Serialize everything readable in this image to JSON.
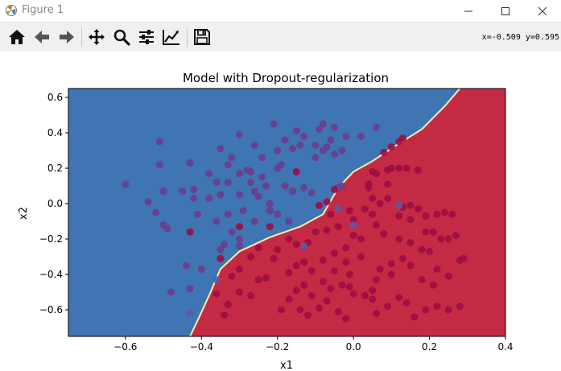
{
  "window": {
    "title": "Figure 1",
    "app_icon": "matplotlib-icon"
  },
  "window_controls": [
    "minimize-icon",
    "maximize-icon",
    "close-icon"
  ],
  "toolbar": {
    "tools": [
      "home-icon",
      "back-arrow-icon",
      "forward-arrow-icon",
      "pan-icon",
      "zoom-icon",
      "configure-subplots-icon",
      "edit-axis-icon",
      "save-icon"
    ],
    "coords": "x=-0.509 y=0.595"
  },
  "colors": {
    "blue_region": "#3e75b2",
    "red_region": "#c52a45",
    "boundary": "#f7efab",
    "pt_purple": "#6a3d8c",
    "pt_dark": "#9c0c42",
    "pt_blue": "#5c58a8"
  },
  "chart_data": {
    "type": "scatter",
    "title": "Model with Dropout-regularization",
    "xlabel": "x1",
    "ylabel": "x2",
    "xlim": [
      -0.75,
      0.4
    ],
    "ylim": [
      -0.75,
      0.65
    ],
    "xticks": [
      "−0.6",
      "−0.4",
      "−0.2",
      "0.0",
      "0.2",
      "0.4"
    ],
    "yticks": [
      "0.6",
      "0.4",
      "0.2",
      "0.0",
      "−0.2",
      "−0.4",
      "−0.6"
    ],
    "grid": false,
    "decision_boundary": [
      [
        -0.43,
        -0.75
      ],
      [
        -0.41,
        -0.66
      ],
      [
        -0.38,
        -0.52
      ],
      [
        -0.35,
        -0.37
      ],
      [
        -0.3,
        -0.27
      ],
      [
        -0.22,
        -0.19
      ],
      [
        -0.14,
        -0.13
      ],
      [
        -0.08,
        -0.06
      ],
      [
        -0.04,
        0.09
      ],
      [
        0.0,
        0.18
      ],
      [
        0.05,
        0.24
      ],
      [
        0.12,
        0.34
      ],
      [
        0.18,
        0.42
      ],
      [
        0.24,
        0.55
      ],
      [
        0.28,
        0.65
      ]
    ],
    "series": [
      {
        "color": "purple",
        "points": [
          [
            -0.6,
            0.11
          ],
          [
            -0.54,
            0.01
          ],
          [
            -0.52,
            -0.05
          ],
          [
            -0.5,
            0.07
          ],
          [
            -0.49,
            -0.14
          ],
          [
            -0.51,
            0.35
          ],
          [
            -0.51,
            0.22
          ],
          [
            -0.5,
            -0.12
          ],
          [
            -0.48,
            -0.5
          ],
          [
            -0.45,
            0.07
          ],
          [
            -0.42,
            0.08
          ],
          [
            -0.43,
            0.23
          ],
          [
            -0.42,
            0.03
          ],
          [
            -0.41,
            -0.06
          ],
          [
            -0.38,
            0.17
          ],
          [
            -0.36,
            0.12
          ],
          [
            -0.33,
            0.12
          ],
          [
            -0.35,
            0.31
          ],
          [
            -0.35,
            0.05
          ],
          [
            -0.3,
            0.39
          ],
          [
            -0.26,
            0.33
          ],
          [
            -0.33,
            0.22
          ],
          [
            -0.3,
            0.17
          ],
          [
            -0.28,
            0.19
          ],
          [
            -0.33,
            -0.06
          ],
          [
            -0.32,
            -0.16
          ],
          [
            -0.3,
            -0.2
          ],
          [
            -0.3,
            -0.24
          ],
          [
            -0.29,
            -0.04
          ],
          [
            -0.26,
            -0.1
          ],
          [
            -0.21,
            0.45
          ],
          [
            -0.18,
            0.36
          ],
          [
            -0.19,
            0.22
          ],
          [
            -0.16,
            0.31
          ],
          [
            -0.14,
            0.33
          ],
          [
            -0.15,
            0.41
          ],
          [
            -0.13,
            0.38
          ],
          [
            -0.1,
            0.26
          ],
          [
            -0.1,
            0.33
          ],
          [
            -0.08,
            0.3
          ],
          [
            -0.08,
            0.45
          ],
          [
            -0.05,
            0.43
          ],
          [
            -0.06,
            0.36
          ],
          [
            -0.09,
            0.42
          ],
          [
            -0.07,
            0.32
          ],
          [
            -0.05,
            0.28
          ],
          [
            -0.02,
            0.38
          ],
          [
            -0.03,
            0.3
          ],
          [
            0.02,
            0.38
          ],
          [
            0.06,
            0.43
          ],
          [
            -0.03,
            0.1
          ],
          [
            -0.04,
            0.09
          ],
          [
            -0.26,
            0.07
          ],
          [
            -0.22,
            -0.04
          ],
          [
            -0.2,
            -0.06
          ],
          [
            -0.17,
            -0.1
          ],
          [
            -0.23,
            0.1
          ],
          [
            -0.25,
            0.04
          ],
          [
            -0.18,
            0.1
          ],
          [
            -0.16,
            0.07
          ],
          [
            -0.13,
            0.09
          ],
          [
            -0.11,
            0.06
          ],
          [
            -0.34,
            -0.23
          ],
          [
            -0.35,
            -0.26
          ],
          [
            -0.36,
            -0.1
          ],
          [
            -0.24,
            0.15
          ],
          [
            -0.27,
            0.12
          ],
          [
            -0.32,
            0.26
          ],
          [
            -0.3,
            0.05
          ],
          [
            -0.38,
            0.03
          ],
          [
            -0.43,
            -0.48
          ],
          [
            -0.44,
            -0.35
          ],
          [
            -0.4,
            -0.37
          ],
          [
            -0.2,
            0.2
          ],
          [
            -0.27,
            0.18
          ],
          [
            -0.24,
            0.26
          ],
          [
            -0.2,
            0.3
          ],
          [
            -0.22,
            0.0
          ]
        ]
      },
      {
        "color": "crimson",
        "points": [
          [
            -0.43,
            -0.16
          ],
          [
            -0.35,
            -0.31
          ],
          [
            -0.3,
            -0.13
          ],
          [
            -0.22,
            -0.13
          ],
          [
            -0.15,
            0.18
          ],
          [
            -0.07,
            0.01
          ],
          [
            -0.05,
            0.08
          ],
          [
            0.08,
            0.29
          ],
          [
            0.1,
            0.32
          ],
          [
            0.12,
            0.35
          ],
          [
            0.13,
            0.37
          ],
          [
            0.05,
            0.18
          ],
          [
            0.06,
            0.17
          ],
          [
            0.09,
            0.19
          ],
          [
            0.1,
            0.2
          ],
          [
            0.12,
            0.2
          ],
          [
            0.14,
            0.2
          ],
          [
            0.17,
            0.19
          ],
          [
            0.04,
            0.11
          ],
          [
            0.09,
            0.11
          ],
          [
            0.04,
            0.09
          ],
          [
            0.05,
            0.03
          ],
          [
            0.07,
            0.0
          ],
          [
            0.09,
            0.03
          ],
          [
            0.03,
            -0.03
          ],
          [
            0.05,
            -0.06
          ],
          [
            0.06,
            -0.12
          ],
          [
            0.13,
            -0.02
          ],
          [
            0.15,
            -0.01
          ],
          [
            0.17,
            -0.03
          ],
          [
            0.19,
            -0.07
          ],
          [
            0.22,
            -0.06
          ],
          [
            0.24,
            -0.05
          ],
          [
            0.26,
            -0.06
          ],
          [
            0.12,
            -0.07
          ],
          [
            0.15,
            -0.09
          ],
          [
            0.19,
            -0.16
          ],
          [
            0.21,
            -0.16
          ],
          [
            0.23,
            -0.2
          ],
          [
            0.25,
            -0.2
          ],
          [
            0.27,
            -0.18
          ],
          [
            0.12,
            -0.2
          ],
          [
            0.15,
            -0.22
          ],
          [
            0.18,
            -0.26
          ],
          [
            0.2,
            -0.27
          ],
          [
            0.29,
            -0.31
          ],
          [
            0.28,
            -0.32
          ],
          [
            0.1,
            -0.34
          ],
          [
            0.13,
            -0.31
          ],
          [
            0.22,
            -0.37
          ],
          [
            0.25,
            -0.41
          ],
          [
            0.21,
            -0.46
          ],
          [
            0.15,
            -0.35
          ],
          [
            0.18,
            -0.43
          ],
          [
            0.1,
            -0.4
          ],
          [
            0.07,
            -0.37
          ],
          [
            0.06,
            -0.43
          ],
          [
            0.05,
            -0.49
          ],
          [
            0.03,
            -0.52
          ],
          [
            -0.01,
            -0.47
          ],
          [
            -0.03,
            -0.46
          ],
          [
            0.0,
            -0.51
          ],
          [
            -0.06,
            -0.48
          ],
          [
            -0.07,
            -0.55
          ],
          [
            -0.09,
            -0.59
          ],
          [
            -0.11,
            -0.52
          ],
          [
            -0.13,
            -0.46
          ],
          [
            -0.15,
            -0.49
          ],
          [
            -0.17,
            -0.54
          ],
          [
            -0.19,
            -0.6
          ],
          [
            -0.14,
            -0.6
          ],
          [
            -0.12,
            -0.63
          ],
          [
            -0.04,
            -0.61
          ],
          [
            -0.02,
            -0.65
          ],
          [
            0.05,
            -0.54
          ],
          [
            0.06,
            -0.62
          ],
          [
            0.09,
            -0.58
          ],
          [
            0.12,
            -0.53
          ],
          [
            0.14,
            -0.56
          ],
          [
            0.16,
            -0.64
          ],
          [
            0.19,
            -0.6
          ],
          [
            0.22,
            -0.58
          ],
          [
            0.25,
            -0.6
          ],
          [
            0.28,
            -0.58
          ],
          [
            -0.23,
            -0.42
          ],
          [
            -0.25,
            -0.43
          ],
          [
            -0.27,
            -0.52
          ],
          [
            -0.3,
            -0.5
          ],
          [
            -0.32,
            -0.41
          ],
          [
            -0.3,
            -0.37
          ],
          [
            -0.27,
            -0.3
          ],
          [
            -0.25,
            -0.25
          ],
          [
            -0.2,
            -0.26
          ],
          [
            -0.17,
            -0.2
          ],
          [
            -0.15,
            -0.23
          ],
          [
            -0.13,
            -0.33
          ],
          [
            -0.11,
            -0.38
          ],
          [
            -0.08,
            -0.32
          ],
          [
            -0.05,
            -0.28
          ],
          [
            -0.02,
            -0.25
          ],
          [
            0.0,
            -0.18
          ],
          [
            0.02,
            -0.2
          ],
          [
            -0.04,
            -0.13
          ],
          [
            -0.07,
            -0.15
          ],
          [
            -0.1,
            -0.16
          ],
          [
            -0.12,
            -0.22
          ],
          [
            -0.15,
            -0.35
          ],
          [
            -0.17,
            -0.39
          ],
          [
            -0.21,
            -0.31
          ],
          [
            -0.08,
            -0.44
          ],
          [
            -0.05,
            -0.38
          ],
          [
            -0.01,
            -0.4
          ],
          [
            -0.02,
            -0.33
          ],
          [
            0.02,
            -0.3
          ],
          [
            -0.33,
            -0.57
          ],
          [
            -0.36,
            -0.51
          ],
          [
            -0.34,
            -0.63
          ],
          [
            -0.06,
            -0.06
          ],
          [
            -0.09,
            -0.01
          ],
          [
            0.0,
            -0.09
          ],
          [
            -0.01,
            -0.04
          ],
          [
            0.08,
            -0.17
          ]
        ]
      },
      {
        "color": "blue",
        "points": [
          [
            0.12,
            -0.01
          ],
          [
            0.0,
            -0.12
          ],
          [
            -0.04,
            -0.03
          ],
          [
            -0.13,
            -0.24
          ],
          [
            -0.36,
            -0.43
          ],
          [
            -0.43,
            -0.62
          ]
        ]
      }
    ]
  }
}
